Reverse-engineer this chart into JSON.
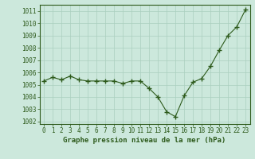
{
  "x": [
    0,
    1,
    2,
    3,
    4,
    5,
    6,
    7,
    8,
    9,
    10,
    11,
    12,
    13,
    14,
    15,
    16,
    17,
    18,
    19,
    20,
    21,
    22,
    23
  ],
  "y": [
    1005.3,
    1005.6,
    1005.4,
    1005.7,
    1005.4,
    1005.3,
    1005.3,
    1005.3,
    1005.3,
    1005.1,
    1005.3,
    1005.3,
    1004.7,
    1004.0,
    1002.8,
    1002.4,
    1004.1,
    1005.2,
    1005.5,
    1006.5,
    1007.8,
    1009.0,
    1009.7,
    1011.1
  ],
  "line_color": "#2d5a1b",
  "marker": "+",
  "bg_color": "#cce8dc",
  "grid_color": "#aacfbf",
  "xlabel": "Graphe pression niveau de la mer (hPa)",
  "xlabel_fontsize": 6.5,
  "tick_fontsize": 5.5,
  "tick_color": "#2d5a1b",
  "ylim": [
    1001.8,
    1011.5
  ],
  "yticks": [
    1002,
    1003,
    1004,
    1005,
    1006,
    1007,
    1008,
    1009,
    1010,
    1011
  ],
  "xlim": [
    -0.5,
    23.5
  ],
  "xticks": [
    0,
    1,
    2,
    3,
    4,
    5,
    6,
    7,
    8,
    9,
    10,
    11,
    12,
    13,
    14,
    15,
    16,
    17,
    18,
    19,
    20,
    21,
    22,
    23
  ]
}
